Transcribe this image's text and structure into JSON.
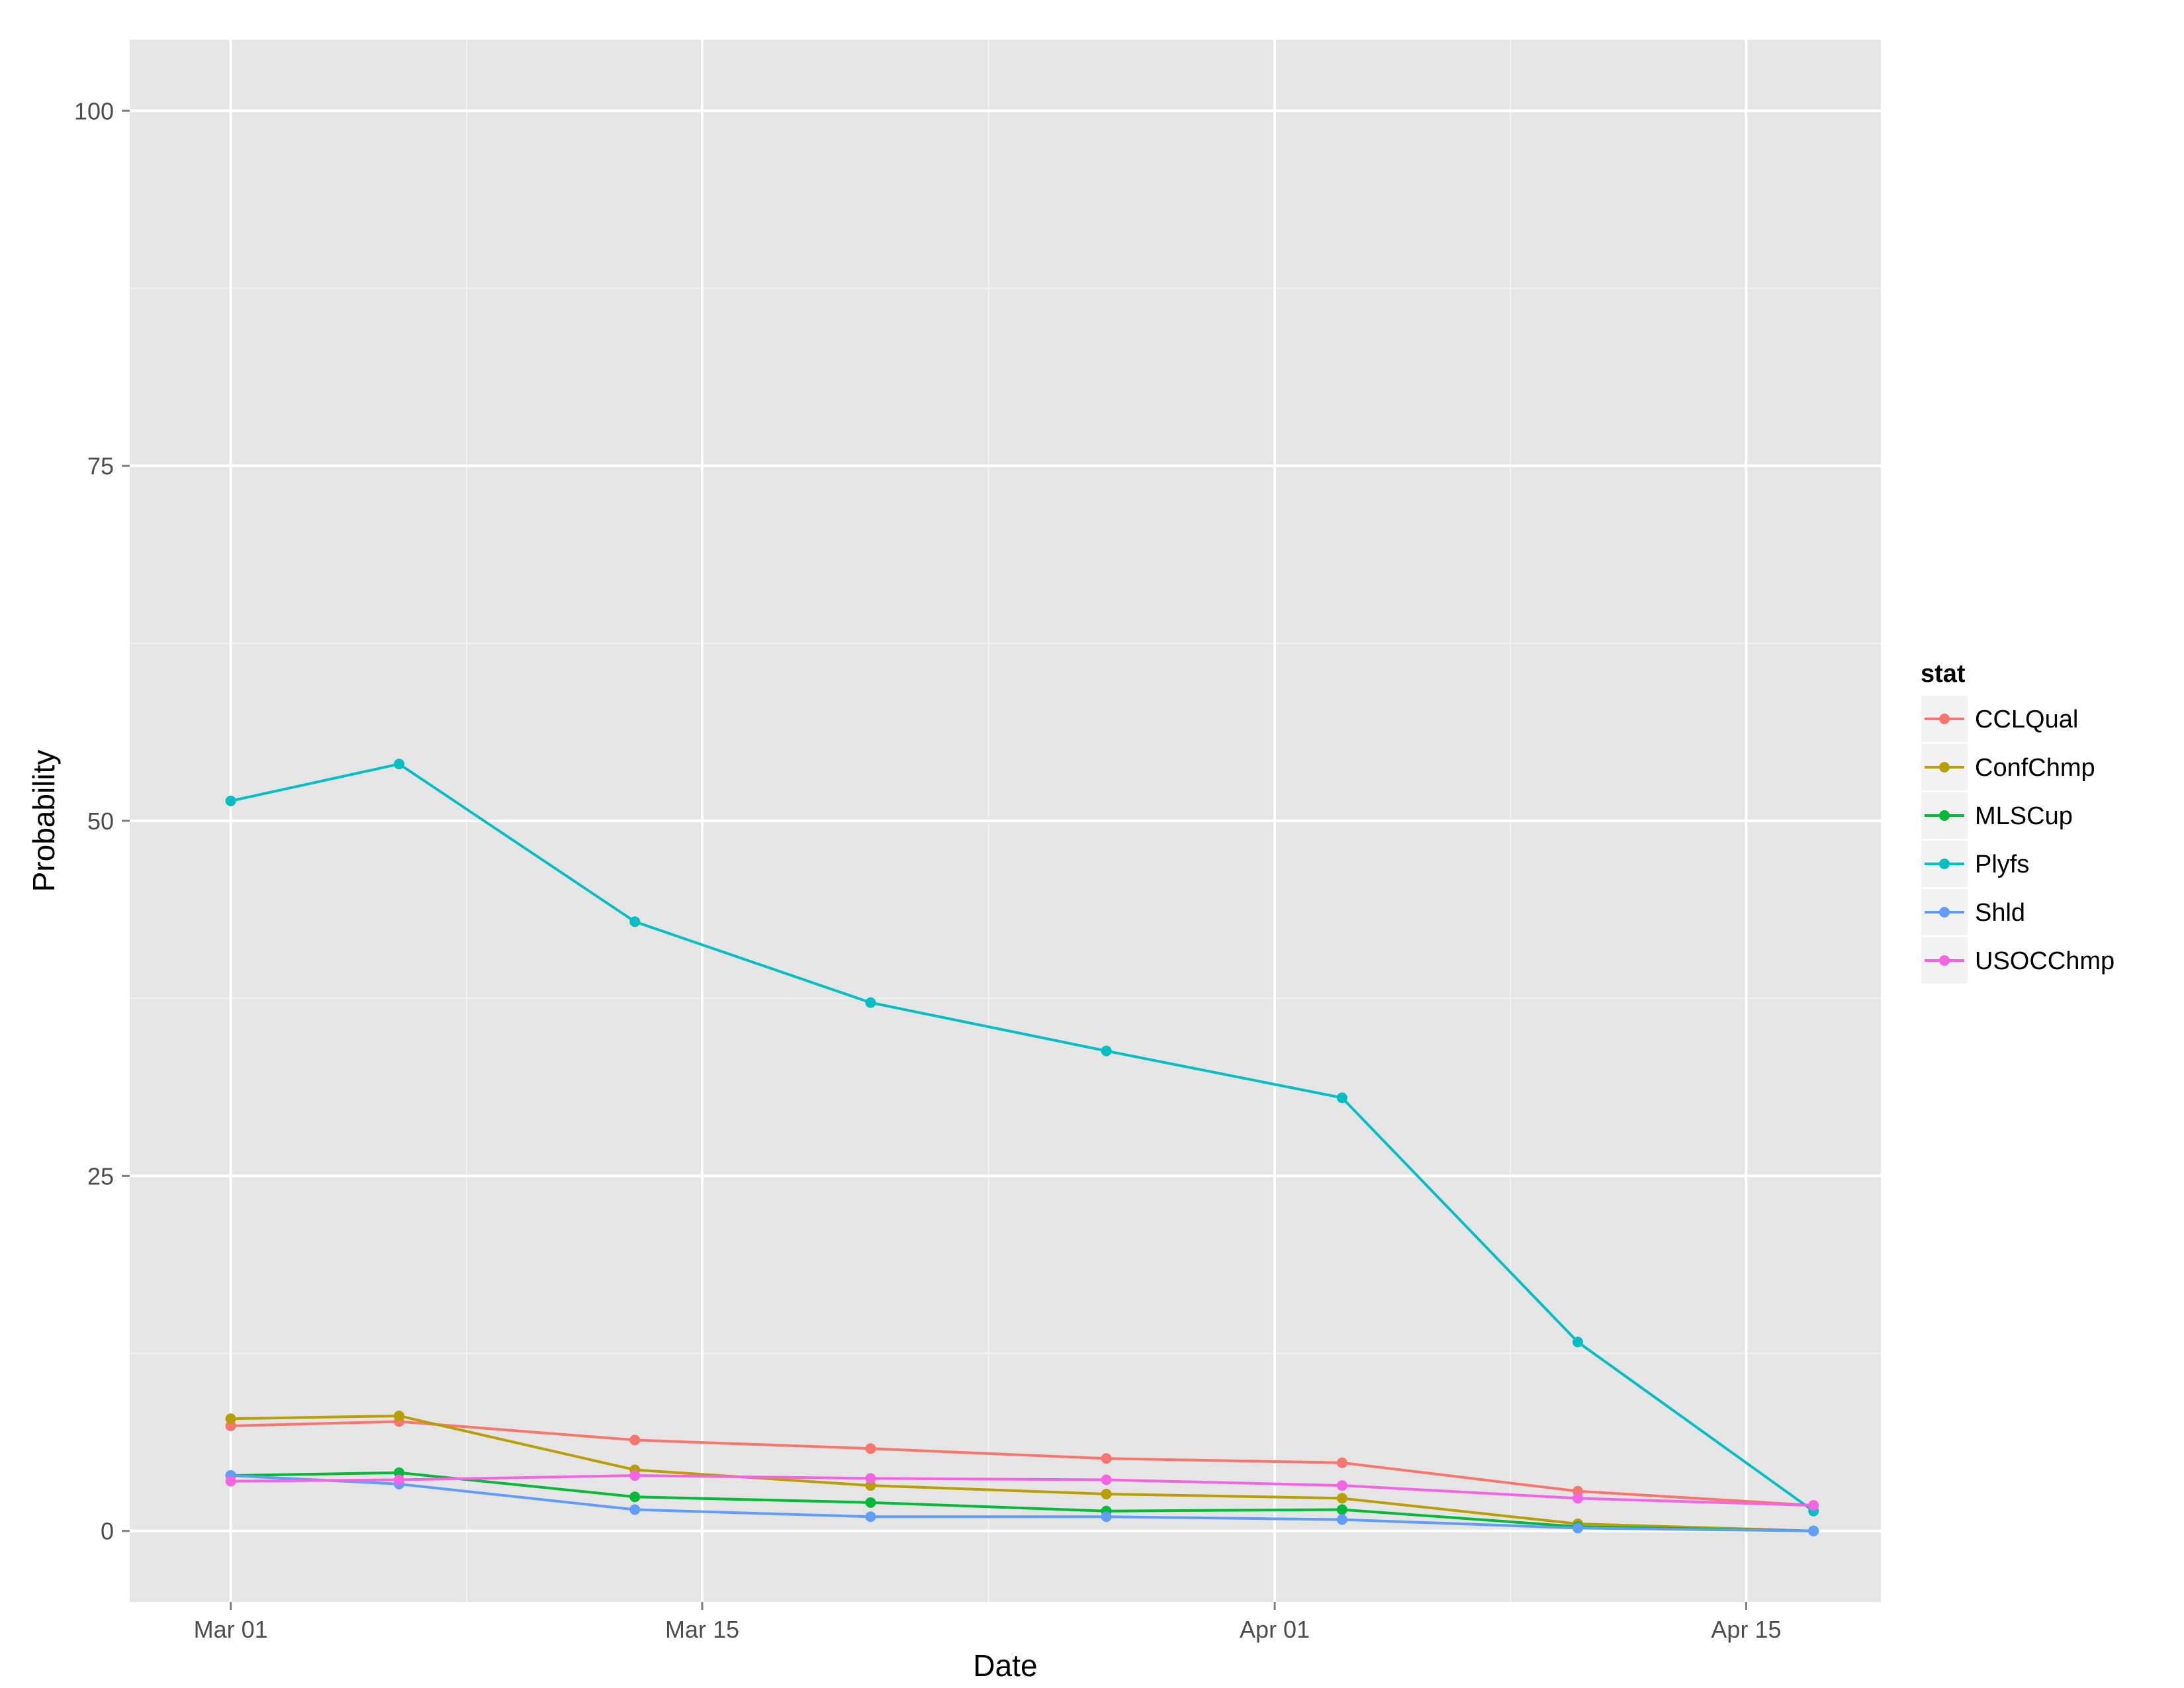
{
  "chart_data": {
    "type": "line",
    "xlabel": "Date",
    "ylabel": "Probability",
    "x_tick_labels": [
      "Mar 01",
      "Mar 15",
      "Apr 01",
      "Apr 15"
    ],
    "x_tick_dates": [
      "2014-03-01",
      "2014-03-15",
      "2014-04-01",
      "2014-04-15"
    ],
    "xlim": [
      "2014-02-26",
      "2014-04-19"
    ],
    "y_tick_labels": [
      "0",
      "25",
      "50",
      "75",
      "100"
    ],
    "y_ticks": [
      0,
      25,
      50,
      75,
      100
    ],
    "ylim": [
      -5,
      105
    ],
    "grid": true,
    "legend": {
      "title": "stat",
      "position": "right"
    },
    "x": [
      "2014-03-01",
      "2014-03-06",
      "2014-03-13",
      "2014-03-20",
      "2014-03-27",
      "2014-04-03",
      "2014-04-10",
      "2014-04-17"
    ],
    "series": [
      {
        "name": "CCLQual",
        "color": "#F8766D",
        "values": [
          7.4,
          7.7,
          6.4,
          5.8,
          5.1,
          4.8,
          2.8,
          1.8
        ]
      },
      {
        "name": "ConfChmp",
        "color": "#B79F00",
        "values": [
          7.9,
          8.1,
          4.3,
          3.2,
          2.6,
          2.3,
          0.5,
          0.0
        ]
      },
      {
        "name": "MLSCup",
        "color": "#00BA38",
        "values": [
          3.9,
          4.1,
          2.4,
          2.0,
          1.4,
          1.5,
          0.3,
          0.0
        ]
      },
      {
        "name": "Plyfs",
        "color": "#00BFC4",
        "values": [
          51.4,
          54.0,
          42.9,
          37.2,
          33.8,
          30.5,
          13.3,
          1.4
        ]
      },
      {
        "name": "Shld",
        "color": "#619CFF",
        "values": [
          3.9,
          3.3,
          1.5,
          1.0,
          1.0,
          0.8,
          0.2,
          0.0
        ]
      },
      {
        "name": "USOCChmp",
        "color": "#F564E3",
        "values": [
          3.5,
          3.6,
          3.9,
          3.7,
          3.6,
          3.2,
          2.3,
          1.8
        ]
      }
    ]
  }
}
